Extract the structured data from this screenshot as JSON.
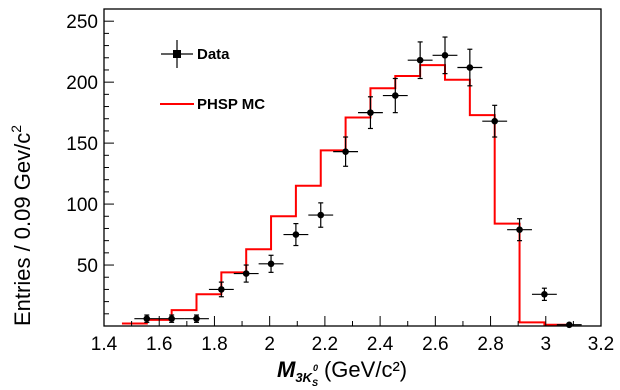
{
  "chart_data": {
    "type": "scatter",
    "xlabel": {
      "main": "M",
      "sub": "3K",
      "subsub": "S",
      "sup": "0",
      "units": "(GeV/c²)"
    },
    "ylabel": "Entries / 0.09 Gev/c",
    "ylabel_sup": "2",
    "xlim": [
      1.4,
      3.2
    ],
    "ylim": [
      0,
      260
    ],
    "x_ticks": [
      1.4,
      1.6,
      1.8,
      2,
      2.2,
      2.4,
      2.6,
      2.8,
      3,
      3.2
    ],
    "x_tick_labels": [
      "1.4",
      "1.6",
      "1.8",
      "2",
      "2.2",
      "2.4",
      "2.6",
      "2.8",
      "3",
      "3.2"
    ],
    "y_ticks": [
      50,
      100,
      150,
      200,
      250
    ],
    "y_tick_labels": [
      "50",
      "100",
      "150",
      "200",
      "250"
    ],
    "bin_width": 0.09,
    "legend": {
      "placement": "top-left",
      "entries": [
        "Data",
        "PHSP MC"
      ]
    },
    "series": [
      {
        "name": "Data",
        "style": "points-with-errors",
        "color": "#000000",
        "x": [
          1.555,
          1.645,
          1.735,
          1.825,
          1.915,
          2.005,
          2.095,
          2.185,
          2.275,
          2.365,
          2.455,
          2.545,
          2.635,
          2.725,
          2.815,
          2.905,
          2.995,
          3.085
        ],
        "y": [
          6,
          6,
          6,
          30,
          43,
          51,
          75,
          91,
          143,
          175,
          189,
          218,
          222,
          212,
          168,
          79,
          26,
          1
        ],
        "yerr": [
          3,
          3,
          3,
          6,
          7,
          7,
          9,
          10,
          12,
          13,
          14,
          15,
          15,
          15,
          13,
          9,
          5,
          1
        ]
      },
      {
        "name": "PHSP MC",
        "style": "step-histogram",
        "color": "#ff0000",
        "bin_edges": [
          1.465,
          1.555,
          1.645,
          1.735,
          1.825,
          1.915,
          2.005,
          2.095,
          2.185,
          2.275,
          2.365,
          2.455,
          2.545,
          2.635,
          2.725,
          2.815,
          2.905,
          2.995,
          3.085
        ],
        "values": [
          2,
          5,
          13,
          26,
          44,
          63,
          90,
          115,
          144,
          171,
          195,
          205,
          214,
          202,
          173,
          84,
          3,
          1
        ]
      }
    ]
  }
}
